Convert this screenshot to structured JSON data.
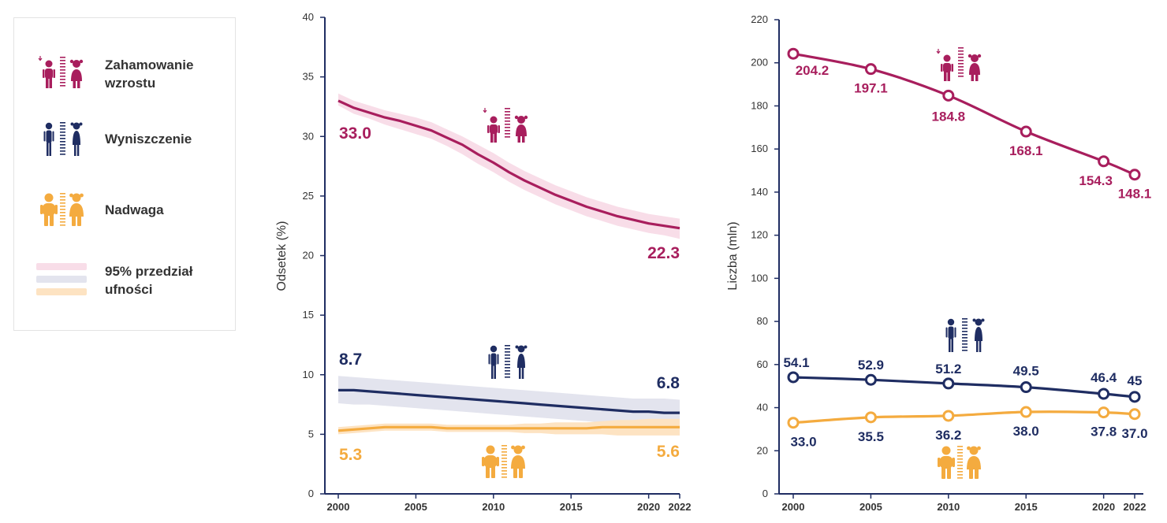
{
  "colors": {
    "stunting": "#a81e5d",
    "wasting": "#1f2d62",
    "overweight": "#f4ab3f",
    "stunting_band": "#f8dde8",
    "wasting_band": "#e3e4ee",
    "overweight_band": "#fde3c2",
    "axis": "#1f2d62",
    "text": "#333333"
  },
  "legend": {
    "stunting_label_line1": "Zahamowanie",
    "stunting_label_line2": "wzrostu",
    "wasting_label": "Wyniszczenie",
    "overweight_label": "Nadwaga",
    "ci_label_line1": "95% przedział",
    "ci_label_line2": "ufności"
  },
  "chart_data": [
    {
      "type": "line",
      "ylabel": "Odsetek (%)",
      "xlabel": "",
      "ylim": [
        0,
        40
      ],
      "yticks": [
        "0",
        "5",
        "10",
        "15",
        "20",
        "25",
        "30",
        "35",
        "40"
      ],
      "xticks": [
        "2000",
        "2005",
        "2010",
        "2015",
        "2020",
        "2022"
      ],
      "x": [
        2000,
        2001,
        2002,
        2003,
        2004,
        2005,
        2006,
        2007,
        2008,
        2009,
        2010,
        2011,
        2012,
        2013,
        2014,
        2015,
        2016,
        2017,
        2018,
        2019,
        2020,
        2021,
        2022
      ],
      "series": [
        {
          "name": "Zahamowanie wzrostu",
          "values": [
            33.0,
            32.4,
            32.0,
            31.6,
            31.3,
            30.9,
            30.5,
            29.9,
            29.3,
            28.5,
            27.8,
            27.0,
            26.3,
            25.7,
            25.1,
            24.6,
            24.1,
            23.7,
            23.3,
            23.0,
            22.7,
            22.5,
            22.3
          ],
          "lower": [
            32.6,
            31.9,
            31.5,
            31.0,
            30.6,
            30.2,
            29.8,
            29.2,
            28.5,
            27.7,
            27.0,
            26.2,
            25.5,
            24.9,
            24.3,
            23.8,
            23.3,
            22.9,
            22.5,
            22.2,
            21.9,
            21.7,
            21.4
          ],
          "upper": [
            33.6,
            33.0,
            32.6,
            32.2,
            31.9,
            31.6,
            31.2,
            30.6,
            30.0,
            29.3,
            28.6,
            27.8,
            27.1,
            26.5,
            25.9,
            25.4,
            24.9,
            24.5,
            24.1,
            23.8,
            23.5,
            23.3,
            23.1
          ],
          "start_label": "33.0",
          "end_label": "22.3"
        },
        {
          "name": "Wyniszczenie",
          "values": [
            8.7,
            8.7,
            8.6,
            8.5,
            8.4,
            8.3,
            8.2,
            8.1,
            8.0,
            7.9,
            7.8,
            7.7,
            7.6,
            7.5,
            7.4,
            7.3,
            7.2,
            7.1,
            7.0,
            6.9,
            6.9,
            6.8,
            6.8
          ],
          "lower": [
            7.6,
            7.5,
            7.5,
            7.4,
            7.3,
            7.2,
            7.1,
            7.0,
            6.9,
            6.8,
            6.7,
            6.6,
            6.5,
            6.4,
            6.3,
            6.2,
            6.1,
            6.0,
            5.9,
            5.9,
            5.8,
            5.8,
            5.8
          ],
          "upper": [
            9.9,
            9.8,
            9.7,
            9.6,
            9.5,
            9.4,
            9.3,
            9.2,
            9.1,
            9.0,
            8.9,
            8.8,
            8.7,
            8.6,
            8.5,
            8.4,
            8.3,
            8.2,
            8.1,
            8.0,
            8.0,
            8.0,
            7.9
          ],
          "start_label": "8.7",
          "end_label": "6.8"
        },
        {
          "name": "Nadwaga",
          "values": [
            5.3,
            5.4,
            5.5,
            5.6,
            5.6,
            5.6,
            5.6,
            5.5,
            5.5,
            5.5,
            5.5,
            5.5,
            5.5,
            5.5,
            5.5,
            5.5,
            5.5,
            5.6,
            5.6,
            5.6,
            5.6,
            5.6,
            5.6
          ],
          "lower": [
            5.0,
            5.1,
            5.2,
            5.3,
            5.3,
            5.3,
            5.3,
            5.2,
            5.2,
            5.2,
            5.2,
            5.2,
            5.1,
            5.1,
            5.0,
            5.0,
            5.0,
            5.0,
            4.9,
            4.9,
            4.9,
            4.9,
            4.9
          ],
          "upper": [
            5.6,
            5.7,
            5.8,
            5.9,
            5.9,
            5.9,
            5.9,
            5.8,
            5.8,
            5.8,
            5.8,
            5.8,
            5.9,
            5.9,
            6.0,
            6.0,
            6.0,
            6.1,
            6.2,
            6.2,
            6.3,
            6.3,
            6.3
          ],
          "start_label": "5.3",
          "end_label": "5.6"
        }
      ]
    },
    {
      "type": "line",
      "ylabel": "Liczba (mln)",
      "xlabel": "",
      "ylim": [
        0,
        220
      ],
      "yticks": [
        "0",
        "20",
        "40",
        "60",
        "80",
        "100",
        "120",
        "140",
        "160",
        "180",
        "200",
        "220"
      ],
      "xticks": [
        "2000",
        "2005",
        "2010",
        "2015",
        "2020",
        "2022"
      ],
      "x": [
        2000,
        2005,
        2010,
        2015,
        2020,
        2022
      ],
      "series": [
        {
          "name": "Zahamowanie wzrostu",
          "values": [
            204.2,
            197.1,
            184.8,
            168.1,
            154.3,
            148.1
          ],
          "labels": [
            "204.2",
            "197.1",
            "184.8",
            "168.1",
            "154.3",
            "148.1"
          ]
        },
        {
          "name": "Wyniszczenie",
          "values": [
            54.1,
            52.9,
            51.2,
            49.5,
            46.4,
            45
          ],
          "labels": [
            "54.1",
            "52.9",
            "51.2",
            "49.5",
            "46.4",
            "45"
          ]
        },
        {
          "name": "Nadwaga",
          "values": [
            33.0,
            35.5,
            36.2,
            38.0,
            37.8,
            37.0
          ],
          "labels": [
            "33.0",
            "35.5",
            "36.2",
            "38.0",
            "37.8",
            "37.0"
          ]
        }
      ]
    }
  ]
}
